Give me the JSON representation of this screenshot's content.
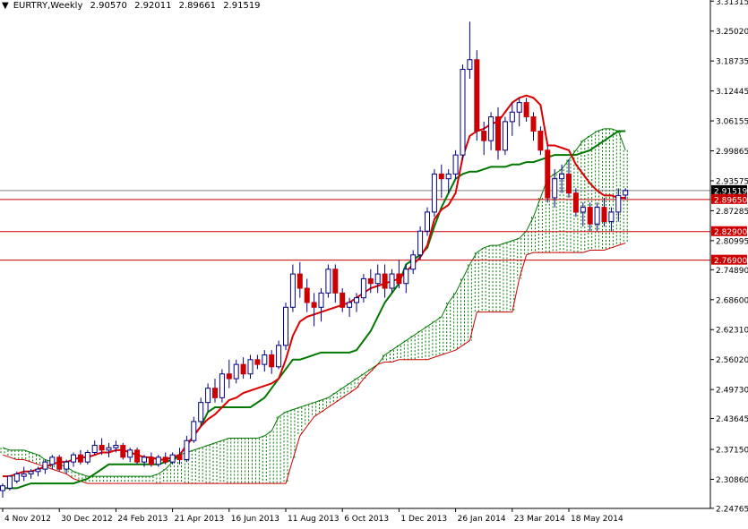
{
  "header": {
    "arrow": "▼",
    "symbol": "EURTRY,Weekly",
    "open": "2.90570",
    "high": "2.92011",
    "low": "2.89661",
    "close": "2.91519"
  },
  "chart_data": {
    "type": "candlestick",
    "symbol": "EURTRY",
    "timeframe": "Weekly",
    "ylim": [
      2.2475,
      3.3155
    ],
    "y_ticks": [
      "3.31315",
      "3.25020",
      "3.18735",
      "3.12445",
      "3.06155",
      "2.99865",
      "2.93575",
      "2.87285",
      "2.80995",
      "2.74890",
      "2.68600",
      "2.62310",
      "2.56020",
      "2.49730",
      "2.43645",
      "2.37150",
      "2.30860",
      "2.24765"
    ],
    "x_ticks": [
      "4 Nov 2012",
      "30 Dec 2012",
      "24 Feb 2013",
      "21 Apr 2013",
      "16 Jun 2013",
      "11 Aug 2013",
      "6 Oct 2013",
      "1 Dec 2013",
      "26 Jan 2014",
      "23 Mar 2014",
      "18 May 2014"
    ],
    "x_tick_index": [
      0,
      8,
      16,
      24,
      32,
      40,
      48,
      56,
      64,
      72,
      80
    ],
    "horizontal_levels": [
      {
        "value": 2.9152,
        "label": "2.91519",
        "kind": "bid",
        "color": "#7f7f7f"
      },
      {
        "value": 2.8965,
        "label": "2.89650",
        "kind": "level",
        "color": "#cc0000"
      },
      {
        "value": 2.829,
        "label": "2.82900",
        "kind": "level",
        "color": "#cc0000"
      },
      {
        "value": 2.769,
        "label": "2.76900",
        "kind": "level",
        "color": "#cc0000"
      }
    ],
    "candles": [
      [
        2.285,
        2.3,
        2.27,
        2.295
      ],
      [
        2.29,
        2.31,
        2.285,
        2.315
      ],
      [
        2.305,
        2.325,
        2.3,
        2.32
      ],
      [
        2.315,
        2.335,
        2.305,
        2.32
      ],
      [
        2.32,
        2.33,
        2.31,
        2.325
      ],
      [
        2.325,
        2.335,
        2.315,
        2.33
      ],
      [
        2.33,
        2.35,
        2.32,
        2.345
      ],
      [
        2.34,
        2.36,
        2.33,
        2.355
      ],
      [
        2.355,
        2.36,
        2.325,
        2.33
      ],
      [
        2.33,
        2.35,
        2.32,
        2.345
      ],
      [
        2.345,
        2.365,
        2.335,
        2.36
      ],
      [
        2.36,
        2.37,
        2.34,
        2.345
      ],
      [
        2.345,
        2.37,
        2.34,
        2.365
      ],
      [
        2.365,
        2.39,
        2.36,
        2.38
      ],
      [
        2.38,
        2.395,
        2.36,
        2.37
      ],
      [
        2.37,
        2.385,
        2.355,
        2.375
      ],
      [
        2.375,
        2.39,
        2.365,
        2.38
      ],
      [
        2.38,
        2.385,
        2.35,
        2.355
      ],
      [
        2.355,
        2.375,
        2.345,
        2.37
      ],
      [
        2.37,
        2.375,
        2.34,
        2.345
      ],
      [
        2.345,
        2.36,
        2.335,
        2.355
      ],
      [
        2.355,
        2.365,
        2.335,
        2.34
      ],
      [
        2.34,
        2.36,
        2.335,
        2.355
      ],
      [
        2.355,
        2.365,
        2.34,
        2.345
      ],
      [
        2.345,
        2.365,
        2.34,
        2.36
      ],
      [
        2.36,
        2.375,
        2.34,
        2.35
      ],
      [
        2.35,
        2.4,
        2.345,
        2.39
      ],
      [
        2.39,
        2.44,
        2.385,
        2.43
      ],
      [
        2.43,
        2.48,
        2.42,
        2.47
      ],
      [
        2.47,
        2.51,
        2.45,
        2.5
      ],
      [
        2.5,
        2.52,
        2.47,
        2.48
      ],
      [
        2.48,
        2.54,
        2.47,
        2.53
      ],
      [
        2.53,
        2.56,
        2.5,
        2.52
      ],
      [
        2.52,
        2.56,
        2.51,
        2.55
      ],
      [
        2.55,
        2.565,
        2.52,
        2.53
      ],
      [
        2.53,
        2.57,
        2.52,
        2.56
      ],
      [
        2.56,
        2.57,
        2.54,
        2.55
      ],
      [
        2.55,
        2.58,
        2.535,
        2.57
      ],
      [
        2.57,
        2.58,
        2.53,
        2.545
      ],
      [
        2.545,
        2.6,
        2.54,
        2.59
      ],
      [
        2.59,
        2.68,
        2.58,
        2.67
      ],
      [
        2.67,
        2.76,
        2.66,
        2.74
      ],
      [
        2.74,
        2.765,
        2.69,
        2.71
      ],
      [
        2.71,
        2.73,
        2.66,
        2.68
      ],
      [
        2.68,
        2.7,
        2.63,
        2.67
      ],
      [
        2.67,
        2.71,
        2.64,
        2.7
      ],
      [
        2.7,
        2.76,
        2.69,
        2.75
      ],
      [
        2.75,
        2.76,
        2.68,
        2.7
      ],
      [
        2.7,
        2.71,
        2.66,
        2.67
      ],
      [
        2.67,
        2.69,
        2.65,
        2.68
      ],
      [
        2.68,
        2.7,
        2.66,
        2.69
      ],
      [
        2.69,
        2.74,
        2.68,
        2.73
      ],
      [
        2.73,
        2.75,
        2.7,
        2.72
      ],
      [
        2.72,
        2.76,
        2.7,
        2.74
      ],
      [
        2.74,
        2.76,
        2.69,
        2.71
      ],
      [
        2.71,
        2.75,
        2.7,
        2.74
      ],
      [
        2.74,
        2.77,
        2.71,
        2.72
      ],
      [
        2.72,
        2.76,
        2.7,
        2.75
      ],
      [
        2.75,
        2.79,
        2.74,
        2.78
      ],
      [
        2.78,
        2.84,
        2.77,
        2.83
      ],
      [
        2.83,
        2.88,
        2.82,
        2.87
      ],
      [
        2.87,
        2.96,
        2.86,
        2.95
      ],
      [
        2.95,
        2.97,
        2.9,
        2.94
      ],
      [
        2.94,
        2.96,
        2.91,
        2.95
      ],
      [
        2.95,
        3.0,
        2.94,
        2.99
      ],
      [
        2.99,
        3.18,
        2.98,
        3.17
      ],
      [
        3.17,
        3.27,
        3.15,
        3.19
      ],
      [
        3.19,
        3.21,
        3.02,
        3.04
      ],
      [
        3.04,
        3.06,
        2.99,
        3.02
      ],
      [
        3.02,
        3.08,
        3.0,
        3.07
      ],
      [
        3.07,
        3.09,
        2.98,
        3.0
      ],
      [
        3.0,
        3.07,
        2.99,
        3.06
      ],
      [
        3.06,
        3.1,
        3.03,
        3.08
      ],
      [
        3.08,
        3.11,
        3.05,
        3.1
      ],
      [
        3.1,
        3.11,
        3.06,
        3.07
      ],
      [
        3.07,
        3.08,
        3.02,
        3.04
      ],
      [
        3.04,
        3.05,
        2.99,
        3.0
      ],
      [
        3.0,
        3.01,
        2.89,
        2.9
      ],
      [
        2.9,
        2.96,
        2.88,
        2.94
      ],
      [
        2.94,
        2.97,
        2.91,
        2.95
      ],
      [
        2.95,
        2.98,
        2.9,
        2.91
      ],
      [
        2.91,
        2.92,
        2.86,
        2.87
      ],
      [
        2.87,
        2.89,
        2.84,
        2.88
      ],
      [
        2.88,
        2.89,
        2.83,
        2.845
      ],
      [
        2.845,
        2.89,
        2.83,
        2.88
      ],
      [
        2.88,
        2.9,
        2.84,
        2.85
      ],
      [
        2.85,
        2.88,
        2.83,
        2.87
      ],
      [
        2.87,
        2.92,
        2.85,
        2.905
      ],
      [
        2.9057,
        2.92011,
        2.89661,
        2.91519
      ]
    ],
    "indicator": "Ichimoku Kinko Hyo",
    "tenkan_sen": [
      2.315,
      2.315,
      2.32,
      2.325,
      2.325,
      2.33,
      2.335,
      2.34,
      2.345,
      2.345,
      2.35,
      2.355,
      2.355,
      2.36,
      2.365,
      2.365,
      2.37,
      2.37,
      2.365,
      2.36,
      2.355,
      2.355,
      2.35,
      2.35,
      2.355,
      2.36,
      2.38,
      2.4,
      2.42,
      2.435,
      2.445,
      2.46,
      2.475,
      2.48,
      2.49,
      2.495,
      2.5,
      2.505,
      2.51,
      2.52,
      2.56,
      2.61,
      2.64,
      2.65,
      2.655,
      2.66,
      2.665,
      2.67,
      2.675,
      2.68,
      2.69,
      2.7,
      2.71,
      2.715,
      2.72,
      2.725,
      2.73,
      2.745,
      2.76,
      2.775,
      2.8,
      2.855,
      2.875,
      2.885,
      2.91,
      2.985,
      3.03,
      3.04,
      3.045,
      3.055,
      3.06,
      3.08,
      3.1,
      3.11,
      3.115,
      3.11,
      3.095,
      3.01,
      3.01,
      3.005,
      3.0,
      2.97,
      2.95,
      2.93,
      2.915,
      2.905,
      2.905,
      2.9,
      2.9
    ],
    "kijun_sen": [
      2.29,
      2.29,
      2.29,
      2.295,
      2.3,
      2.3,
      2.3,
      2.3,
      2.3,
      2.3,
      2.3,
      2.305,
      2.31,
      2.32,
      2.33,
      2.34,
      2.34,
      2.34,
      2.34,
      2.34,
      2.34,
      2.34,
      2.34,
      2.345,
      2.35,
      2.36,
      2.38,
      2.4,
      2.42,
      2.45,
      2.46,
      2.46,
      2.46,
      2.46,
      2.46,
      2.46,
      2.47,
      2.48,
      2.5,
      2.52,
      2.54,
      2.56,
      2.56,
      2.565,
      2.57,
      2.575,
      2.575,
      2.575,
      2.575,
      2.575,
      2.58,
      2.6,
      2.62,
      2.65,
      2.68,
      2.7,
      2.72,
      2.76,
      2.77,
      2.78,
      2.795,
      2.84,
      2.88,
      2.91,
      2.94,
      2.95,
      2.955,
      2.955,
      2.96,
      2.965,
      2.965,
      2.965,
      2.97,
      2.97,
      2.975,
      2.975,
      2.98,
      2.985,
      2.99,
      2.99,
      2.99,
      2.99,
      2.995,
      3.0,
      3.01,
      3.02,
      3.03,
      3.04,
      3.04
    ],
    "senkou_span_a": [
      2.365,
      2.37,
      2.375,
      2.38,
      2.385,
      2.39,
      2.395,
      2.4,
      2.405,
      2.4,
      2.395,
      2.385,
      2.38,
      2.375,
      2.37,
      2.37,
      2.37,
      2.365,
      2.36,
      2.35,
      2.345,
      2.34,
      2.335,
      2.325,
      2.32,
      2.315,
      2.315,
      2.315,
      2.315,
      2.315,
      2.315,
      2.315,
      2.315,
      2.315,
      2.315,
      2.32,
      2.33,
      2.345,
      2.36,
      2.365,
      2.37,
      2.375,
      2.38,
      2.385,
      2.39,
      2.395,
      2.395,
      2.395,
      2.395,
      2.395,
      2.4,
      2.41,
      2.44,
      2.45,
      2.455,
      2.46,
      2.465,
      2.47,
      2.475,
      2.48,
      2.49,
      2.5,
      2.51,
      2.52,
      2.53,
      2.54,
      2.55,
      2.57,
      2.58,
      2.59,
      2.6,
      2.61,
      2.62,
      2.63,
      2.64,
      2.65,
      2.68,
      2.7,
      2.73,
      2.76,
      2.785,
      2.795,
      2.8,
      2.8,
      2.805,
      2.81,
      2.815,
      2.83,
      2.86,
      2.9,
      2.94,
      2.95,
      2.96,
      2.98,
      3.0,
      3.02,
      3.03,
      3.04,
      3.045,
      3.045,
      3.04,
      3.0
    ],
    "senkou_span_b": [
      2.375,
      2.385,
      2.395,
      2.405,
      2.41,
      2.41,
      2.41,
      2.41,
      2.41,
      2.4,
      2.39,
      2.38,
      2.37,
      2.36,
      2.355,
      2.35,
      2.35,
      2.345,
      2.34,
      2.335,
      2.33,
      2.325,
      2.32,
      2.31,
      2.305,
      2.3,
      2.3,
      2.3,
      2.3,
      2.3,
      2.3,
      2.3,
      2.3,
      2.3,
      2.3,
      2.3,
      2.3,
      2.3,
      2.3,
      2.3,
      2.3,
      2.3,
      2.3,
      2.3,
      2.3,
      2.3,
      2.3,
      2.3,
      2.3,
      2.3,
      2.3,
      2.3,
      2.3,
      2.3,
      2.35,
      2.4,
      2.42,
      2.44,
      2.45,
      2.46,
      2.47,
      2.48,
      2.49,
      2.5,
      2.52,
      2.535,
      2.55,
      2.555,
      2.555,
      2.56,
      2.56,
      2.56,
      2.56,
      2.56,
      2.565,
      2.57,
      2.575,
      2.58,
      2.59,
      2.6,
      2.66,
      2.66,
      2.66,
      2.66,
      2.66,
      2.66,
      2.73,
      2.78,
      2.785,
      2.785,
      2.785,
      2.785,
      2.785,
      2.785,
      2.785,
      2.785,
      2.79,
      2.79,
      2.79,
      2.795,
      2.8,
      2.805
    ],
    "kumo_shift": 26,
    "kumo_start_offset": -13,
    "chikou_span_shown": false,
    "colors": {
      "bull_body": "#ffffff",
      "bear_body": "#cc0000",
      "candle_outline": "#000080",
      "tenkan": "#dd0000",
      "kijun": "#007700",
      "kumo_bear": "#cc0000",
      "kumo_bull": "#007700",
      "level_line": "#cc0000",
      "bid_line": "#7f7f7f",
      "axis": "#000000",
      "background": "#ffffff"
    },
    "grid": false
  }
}
